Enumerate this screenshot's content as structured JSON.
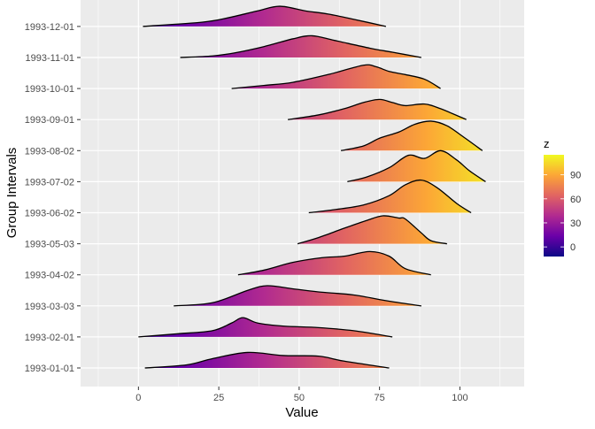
{
  "chart_data": {
    "type": "ridgeline",
    "xlabel": "Value",
    "ylabel": "Group Intervals",
    "xlim": [
      -18,
      120
    ],
    "xticks": [
      0,
      25,
      50,
      75,
      100
    ],
    "grid": true,
    "fill": "gradient by x value (plasma)",
    "legend": {
      "title": "z",
      "placement": "right",
      "ticks": [
        0,
        30,
        60,
        90
      ],
      "range": [
        -12,
        115
      ],
      "colors": [
        "#0d0887",
        "#6a00a8",
        "#b12a90",
        "#e16462",
        "#fca636",
        "#f0f921"
      ]
    },
    "series": [
      {
        "name": "1993-01-01",
        "x": [
          2,
          15,
          23,
          34,
          45,
          56,
          64,
          78
        ],
        "density": [
          0,
          0.1,
          0.3,
          0.5,
          0.4,
          0.38,
          0.22,
          0
        ]
      },
      {
        "name": "1993-02-01",
        "x": [
          0,
          12,
          23,
          29,
          32.5,
          37,
          45,
          56,
          67,
          79
        ],
        "density": [
          0,
          0.1,
          0.2,
          0.45,
          0.62,
          0.45,
          0.35,
          0.3,
          0.2,
          0
        ]
      },
      {
        "name": "1993-03-03",
        "x": [
          11,
          23,
          34,
          40,
          48,
          56,
          67,
          78,
          88
        ],
        "density": [
          0,
          0.1,
          0.5,
          0.65,
          0.55,
          0.45,
          0.35,
          0.15,
          0
        ]
      },
      {
        "name": "1993-04-02",
        "x": [
          31,
          39,
          48,
          57,
          64,
          72,
          78,
          83,
          91
        ],
        "density": [
          0,
          0.15,
          0.4,
          0.55,
          0.6,
          0.75,
          0.6,
          0.2,
          0
        ]
      },
      {
        "name": "1993-05-03",
        "x": [
          49.5,
          56,
          64,
          71,
          76,
          81,
          83,
          88,
          91,
          96
        ],
        "density": [
          0,
          0.2,
          0.5,
          0.75,
          0.9,
          0.83,
          0.8,
          0.35,
          0.1,
          0
        ]
      },
      {
        "name": "1993-06-02",
        "x": [
          53,
          61,
          70,
          78,
          83,
          88,
          93,
          99,
          103.5
        ],
        "density": [
          0,
          0.1,
          0.25,
          0.55,
          0.9,
          1.05,
          0.8,
          0.3,
          0
        ]
      },
      {
        "name": "1993-07-02",
        "x": [
          65,
          71,
          78,
          84,
          89,
          94,
          99,
          103,
          108
        ],
        "density": [
          0,
          0.15,
          0.45,
          0.85,
          0.75,
          1.0,
          0.7,
          0.35,
          0
        ]
      },
      {
        "name": "1993-08-02",
        "x": [
          63,
          70,
          75,
          81,
          86,
          91,
          96,
          101,
          107
        ],
        "density": [
          0,
          0.15,
          0.4,
          0.6,
          0.85,
          0.95,
          0.8,
          0.45,
          0
        ]
      },
      {
        "name": "1993-09-01",
        "x": [
          46.5,
          56,
          64,
          70,
          75,
          79,
          83,
          89,
          94,
          102
        ],
        "density": [
          0,
          0.15,
          0.35,
          0.55,
          0.65,
          0.55,
          0.45,
          0.5,
          0.35,
          0
        ]
      },
      {
        "name": "1993-10-01",
        "x": [
          29,
          39,
          48,
          59,
          70,
          74,
          78,
          83,
          89,
          94
        ],
        "density": [
          0,
          0.1,
          0.2,
          0.45,
          0.75,
          0.7,
          0.55,
          0.45,
          0.3,
          0
        ]
      },
      {
        "name": "1993-11-01",
        "x": [
          13,
          23,
          30,
          39,
          48,
          54,
          61,
          72,
          79,
          88
        ],
        "density": [
          0,
          0.05,
          0.15,
          0.35,
          0.6,
          0.7,
          0.55,
          0.3,
          0.17,
          0
        ]
      },
      {
        "name": "1993-12-01",
        "x": [
          1.4,
          20,
          28,
          37,
          44,
          52,
          59,
          67,
          77
        ],
        "density": [
          0,
          0.14,
          0.28,
          0.5,
          0.65,
          0.5,
          0.4,
          0.23,
          0
        ]
      }
    ]
  }
}
